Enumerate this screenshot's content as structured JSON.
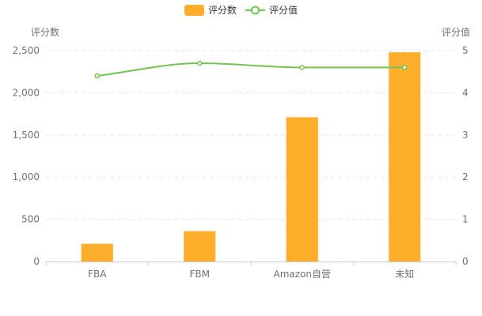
{
  "chart_data": {
    "type": "bar",
    "categories": [
      "FBA",
      "FBM",
      "Amazon自营",
      "未知"
    ],
    "series": [
      {
        "name": "评分数",
        "type": "bar",
        "axis": "left",
        "values": [
          210,
          360,
          1710,
          2480
        ]
      },
      {
        "name": "评分值",
        "type": "line",
        "axis": "right",
        "smooth": true,
        "values": [
          4.4,
          4.7,
          4.6,
          4.6
        ]
      }
    ],
    "y_left": {
      "name": "评分数",
      "min": 0,
      "max": 2500,
      "ticks": [
        0,
        500,
        1000,
        1500,
        2000,
        2500
      ],
      "tick_labels": [
        "0",
        "500",
        "1,000",
        "1,500",
        "2,000",
        "2,500"
      ]
    },
    "y_right": {
      "name": "评分值",
      "min": 0,
      "max": 5,
      "ticks": [
        0,
        1,
        2,
        3,
        4,
        5
      ],
      "tick_labels": [
        "0",
        "1",
        "2",
        "3",
        "4",
        "5"
      ]
    },
    "legend": {
      "position": "top-center",
      "items": [
        "评分数",
        "评分值"
      ]
    },
    "grid": true
  },
  "colors": {
    "bar": "#ffae2b",
    "line": "#73c44e",
    "grid": "#e0e6f1",
    "axis": "#cccccc",
    "text": "#6e7079"
  }
}
